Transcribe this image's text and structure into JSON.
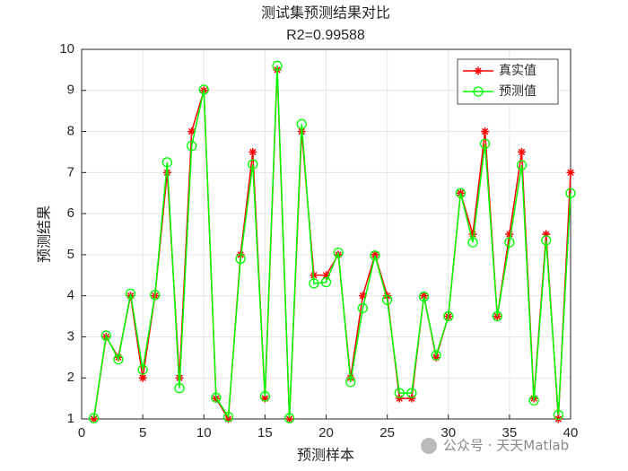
{
  "chart_data": {
    "type": "line",
    "title": "测试集预测结果对比",
    "subtitle": "R2=0.99588",
    "x_label": "预测样本",
    "y_label": "预测结果",
    "x": [
      1,
      2,
      3,
      4,
      5,
      6,
      7,
      8,
      9,
      10,
      11,
      12,
      13,
      14,
      15,
      16,
      17,
      18,
      19,
      20,
      21,
      22,
      23,
      24,
      25,
      26,
      27,
      28,
      29,
      30,
      31,
      32,
      33,
      34,
      35,
      36,
      37,
      38,
      39,
      40
    ],
    "series": [
      {
        "name": "真实值",
        "color": "#ff0000",
        "marker": "asterisk",
        "values": [
          1,
          3,
          2.5,
          4,
          2,
          4,
          7,
          2,
          8,
          9,
          1.5,
          1,
          5,
          7.5,
          1.5,
          9.5,
          1,
          8,
          4.5,
          4.5,
          5,
          2,
          4,
          5,
          4,
          1.5,
          1.5,
          4,
          2.5,
          3.5,
          6.5,
          5.5,
          8,
          3.5,
          5.5,
          7.5,
          1.5,
          5.5,
          1,
          7
        ]
      },
      {
        "name": "预测值",
        "color": "#00ff00",
        "marker": "circle",
        "values": [
          1.02,
          3.03,
          2.45,
          4.05,
          2.2,
          4.02,
          7.25,
          1.75,
          7.65,
          9.02,
          1.52,
          1.05,
          4.9,
          7.2,
          1.55,
          9.6,
          1.02,
          8.18,
          4.3,
          4.33,
          5.05,
          1.9,
          3.7,
          4.98,
          3.9,
          1.63,
          1.63,
          3.98,
          2.55,
          3.5,
          6.5,
          5.3,
          7.7,
          3.5,
          5.3,
          7.18,
          1.45,
          5.35,
          1.1,
          6.5
        ]
      }
    ],
    "xlim": [
      0,
      40
    ],
    "xticks": [
      0,
      5,
      10,
      15,
      20,
      25,
      30,
      35,
      40
    ],
    "ylim": [
      1,
      10
    ],
    "yticks": [
      1,
      2,
      3,
      4,
      5,
      6,
      7,
      8,
      9,
      10
    ],
    "grid": true,
    "legend": "northeast"
  },
  "watermark": "公众号 · 天天Matlab"
}
